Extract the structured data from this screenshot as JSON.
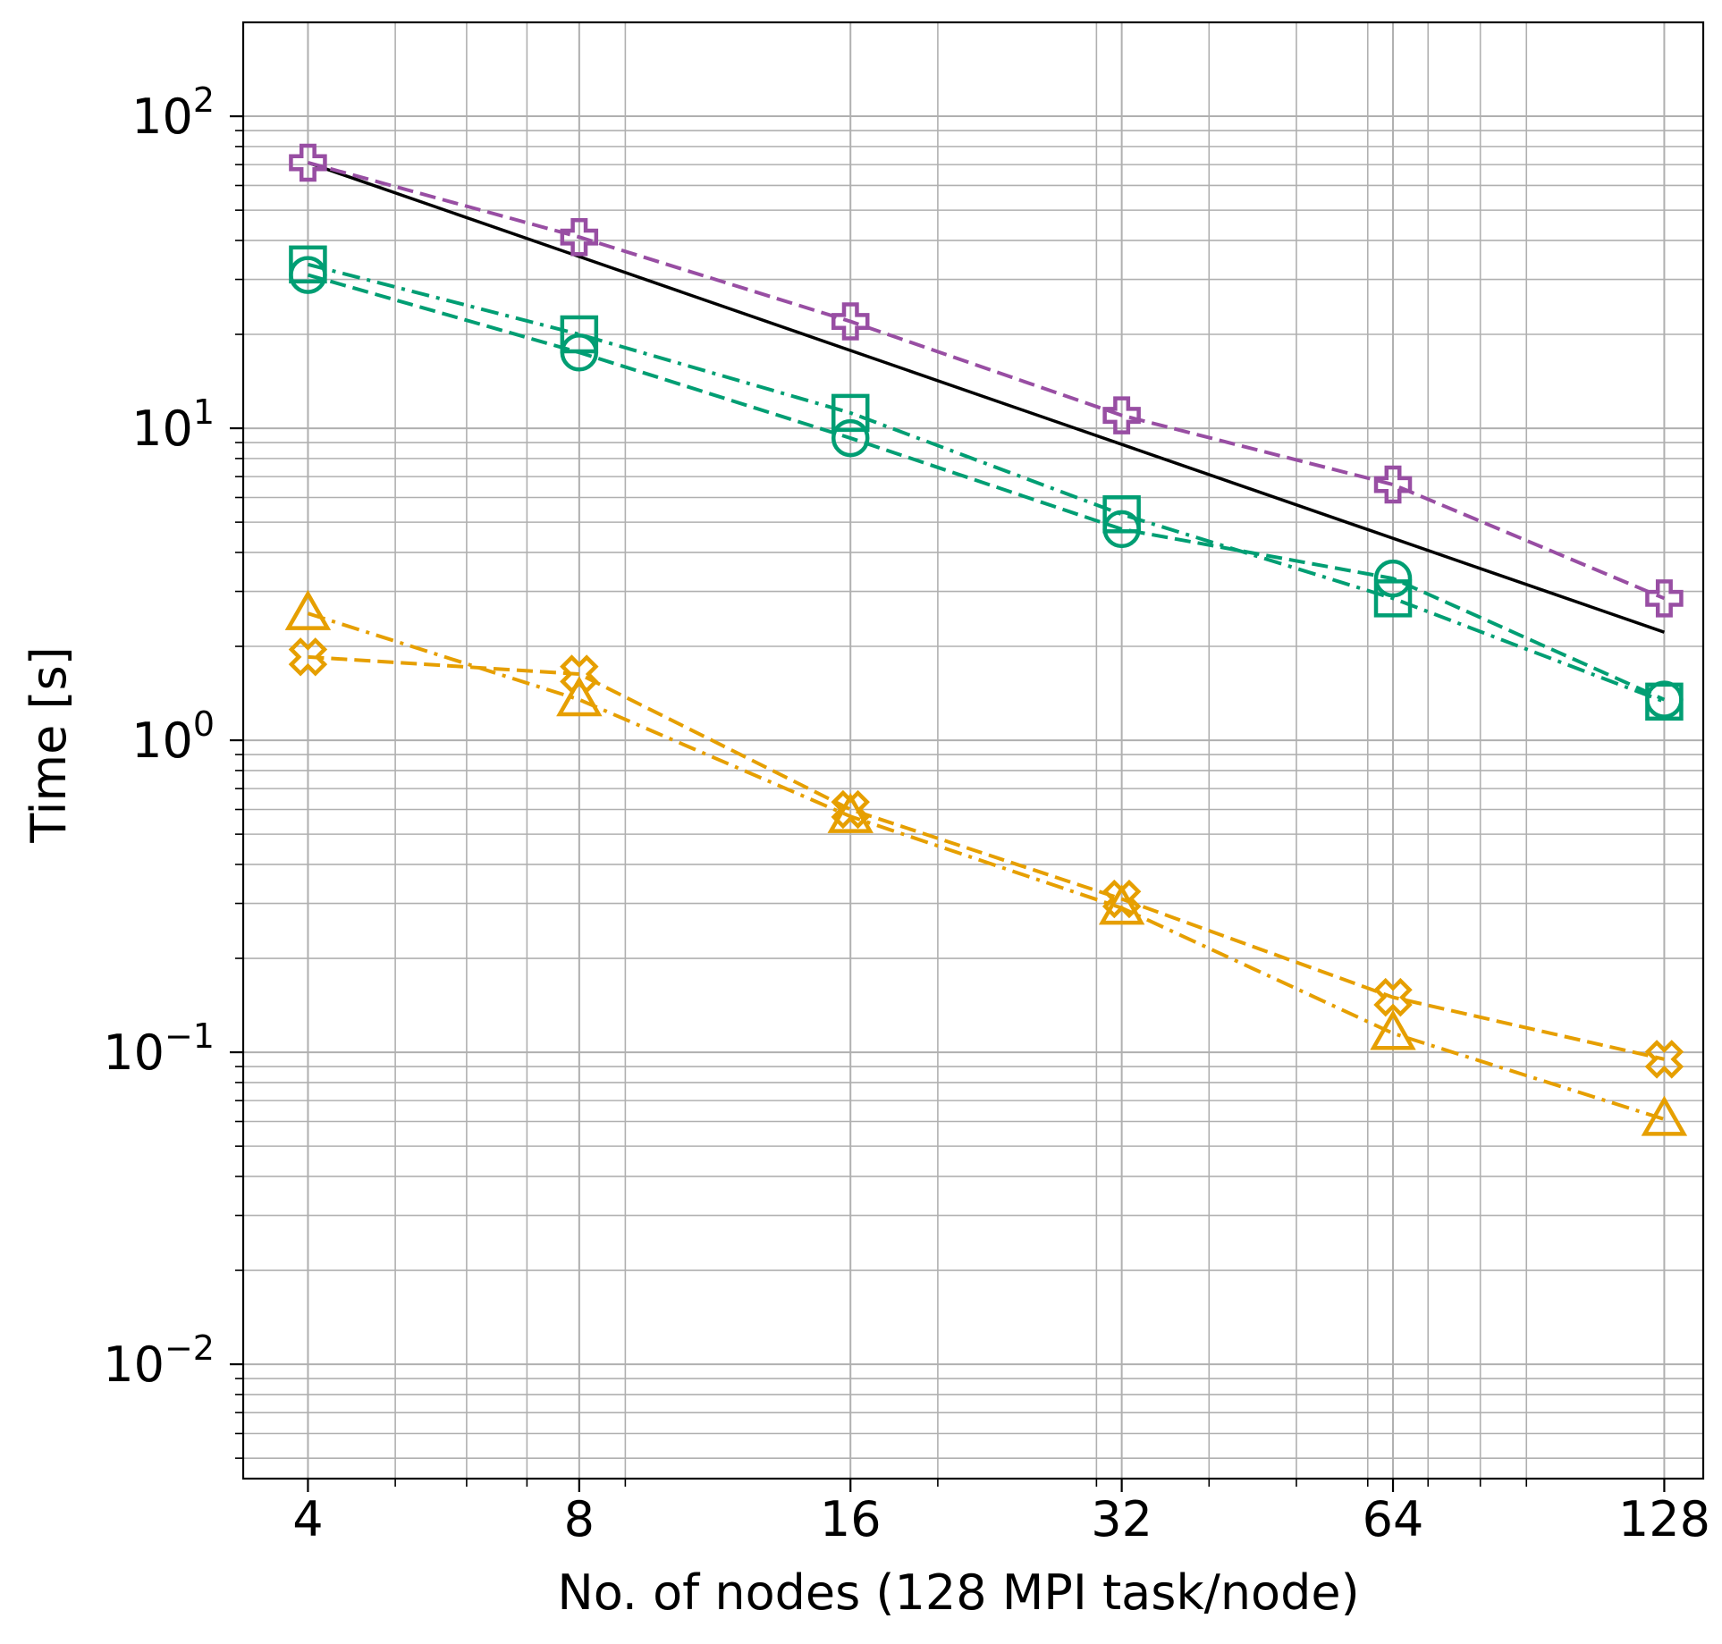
{
  "chart_data": {
    "type": "line",
    "title": "",
    "xlabel": "No. of nodes (128 MPI task/node)",
    "ylabel": "Time [s]",
    "xscale": "log2",
    "yscale": "log10",
    "xlim": [
      3.39,
      141.4
    ],
    "ylim": [
      0.0043,
      200
    ],
    "grid": true,
    "grid_color": "#b0b0b0",
    "x_ticks": [
      {
        "value": 4,
        "label": "4"
      },
      {
        "value": 8,
        "label": "8"
      },
      {
        "value": 16,
        "label": "16"
      },
      {
        "value": 32,
        "label": "32"
      },
      {
        "value": 64,
        "label": "64"
      },
      {
        "value": 128,
        "label": "128"
      }
    ],
    "y_ticks": [
      {
        "value": 0.01,
        "base": "10",
        "exp": "−2"
      },
      {
        "value": 0.1,
        "base": "10",
        "exp": "−1"
      },
      {
        "value": 1,
        "base": "10",
        "exp": "0"
      },
      {
        "value": 10,
        "base": "10",
        "exp": "1"
      },
      {
        "value": 100,
        "base": "10",
        "exp": "2"
      }
    ],
    "series": [
      {
        "name": "ideal",
        "color": "#000000",
        "dash": "solid",
        "marker": "none",
        "x": [
          4,
          128
        ],
        "y": [
          71,
          2.22
        ]
      },
      {
        "name": "purple-plus",
        "color": "#984ea3",
        "dash": "dashed",
        "marker": "plus",
        "x": [
          4,
          8,
          16,
          32,
          64,
          128
        ],
        "y": [
          71,
          41,
          22,
          11,
          6.6,
          2.85
        ]
      },
      {
        "name": "green-square",
        "color": "#009e73",
        "dash": "dashdot",
        "marker": "square",
        "x": [
          4,
          8,
          16,
          32,
          64,
          128
        ],
        "y": [
          33.5,
          20,
          11.2,
          5.3,
          2.85,
          1.33
        ]
      },
      {
        "name": "green-circle",
        "color": "#009e73",
        "dash": "dashed",
        "marker": "circle",
        "x": [
          4,
          8,
          16,
          32,
          64,
          128
        ],
        "y": [
          31,
          17.5,
          9.3,
          4.75,
          3.3,
          1.35
        ]
      },
      {
        "name": "orange-triangle",
        "color": "#e69f00",
        "dash": "dashdot",
        "marker": "triangle",
        "x": [
          4,
          8,
          16,
          32,
          64,
          128
        ],
        "y": [
          2.55,
          1.35,
          0.57,
          0.29,
          0.115,
          0.061
        ]
      },
      {
        "name": "orange-x",
        "color": "#e69f00",
        "dash": "dashed",
        "marker": "xplus",
        "x": [
          4,
          8,
          16,
          32,
          64,
          128
        ],
        "y": [
          1.85,
          1.63,
          0.6,
          0.31,
          0.15,
          0.095
        ]
      }
    ]
  }
}
